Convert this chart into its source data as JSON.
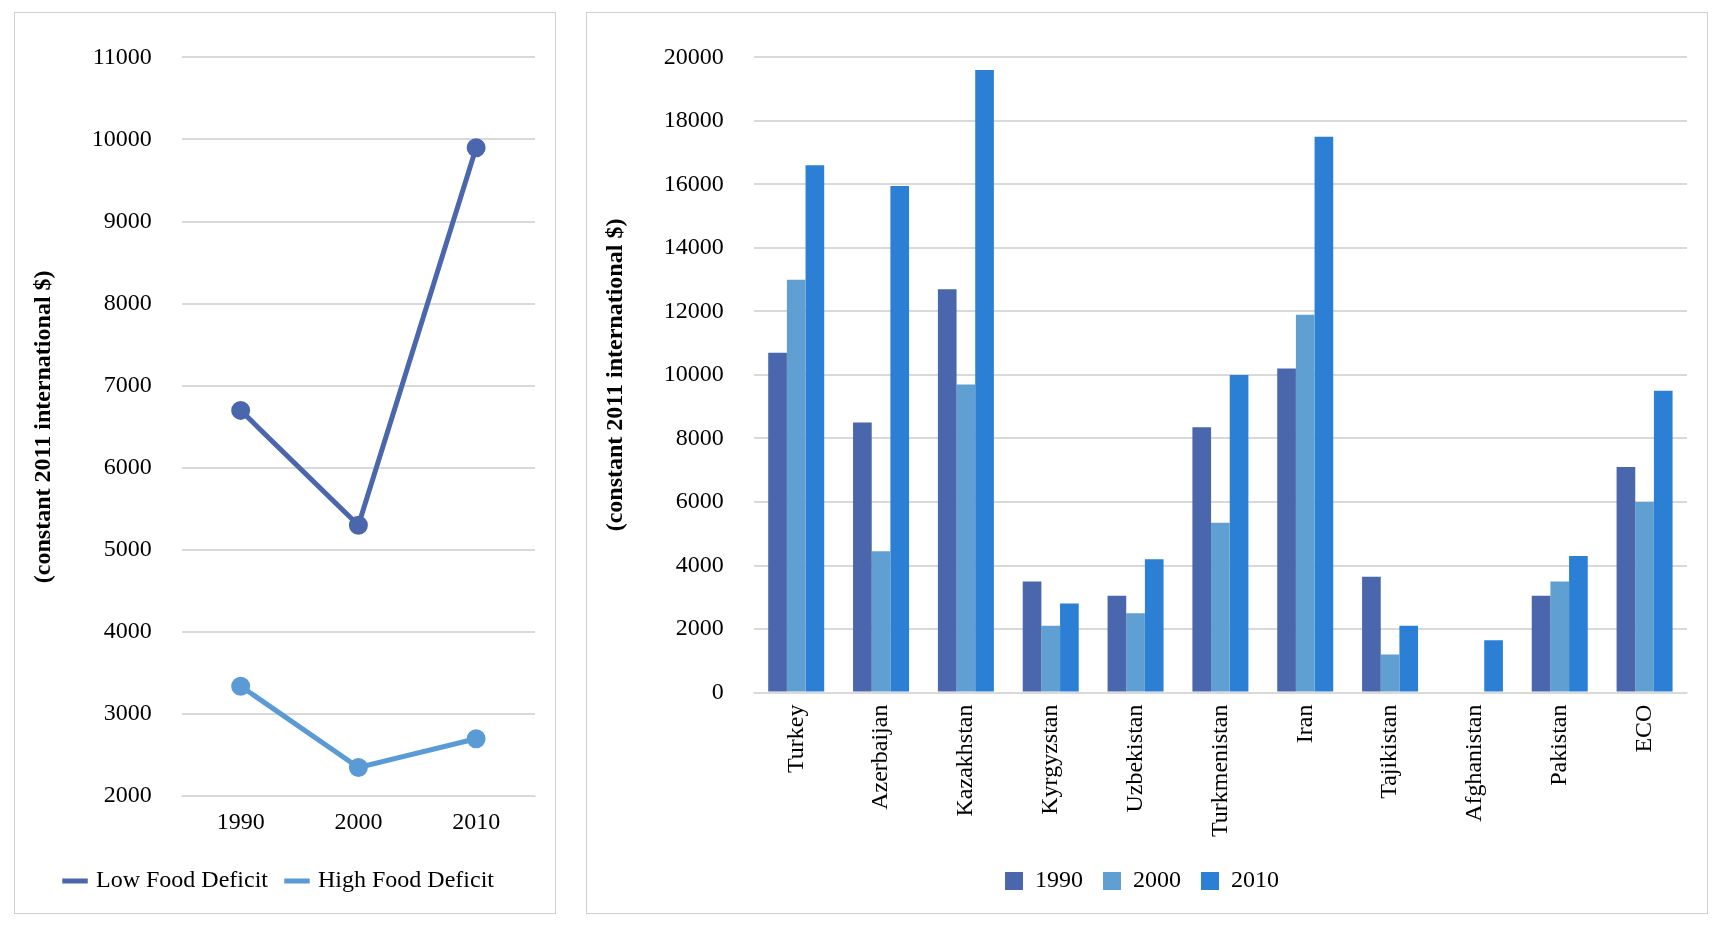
{
  "chart_data": [
    {
      "type": "line",
      "ylabel": "(constant 2011 international $)",
      "categories": [
        "1990",
        "2000",
        "2010"
      ],
      "series": [
        {
          "name": "Low Food Deficit",
          "color": "#4a66ac",
          "values": [
            6700,
            5300,
            9900
          ]
        },
        {
          "name": "High Food Deficit",
          "color": "#5b9bd5",
          "values": [
            3340,
            2350,
            2700
          ]
        }
      ],
      "ylim": [
        2000,
        11000
      ],
      "yticks": [
        2000,
        3000,
        4000,
        5000,
        6000,
        7000,
        8000,
        9000,
        10000,
        11000
      ],
      "grid": "y",
      "legend": "bottom",
      "marker": "circle"
    },
    {
      "type": "bar",
      "ylabel": "(constant 2011 international $)",
      "categories": [
        "Turkey",
        "Azerbaijan",
        "Kazakhstan",
        "Kyrgyzstan",
        "Uzbekistan",
        "Turkmenistan",
        "Iran",
        "Tajikistan",
        "Afghanistan",
        "Pakistan",
        "ECO"
      ],
      "series": [
        {
          "name": "1990",
          "color": "#4a66ac",
          "values": [
            10700,
            8500,
            12700,
            3500,
            3050,
            8350,
            10200,
            3650,
            null,
            3050,
            7100
          ]
        },
        {
          "name": "2000",
          "color": "#609fd2",
          "values": [
            13000,
            4450,
            9700,
            2100,
            2500,
            5350,
            11900,
            1200,
            null,
            3500,
            6000
          ]
        },
        {
          "name": "2010",
          "color": "#2b7fd4",
          "values": [
            16600,
            15950,
            19600,
            2800,
            4200,
            10000,
            17500,
            2100,
            1650,
            4300,
            9500
          ]
        }
      ],
      "ylim": [
        0,
        20000
      ],
      "yticks": [
        0,
        2000,
        4000,
        6000,
        8000,
        10000,
        12000,
        14000,
        16000,
        18000,
        20000
      ],
      "grid": "y",
      "legend": "bottom"
    }
  ]
}
